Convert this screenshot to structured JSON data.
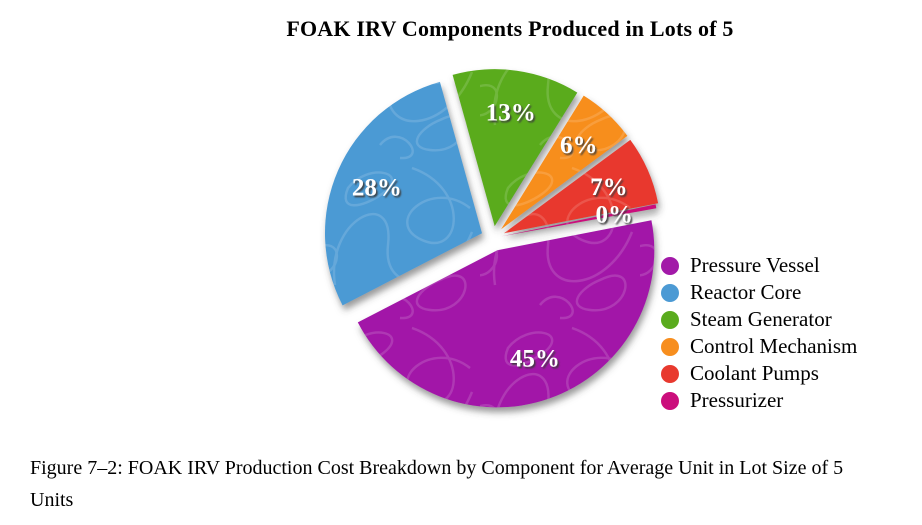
{
  "title": "FOAK IRV Components Produced in Lots of 5",
  "caption": "Figure 7–2: FOAK IRV Production Cost Breakdown by Component for Average Unit in Lot Size of 5 Units",
  "chart_data": {
    "type": "pie",
    "title": "FOAK IRV Components Produced in Lots of 5",
    "legend_position": "right",
    "direction": "clockwise",
    "start_angle_deg": 11,
    "label_color": "#ffffff",
    "slices": [
      {
        "label": "Pressure Vessel",
        "value": 45,
        "pct_label": "45%",
        "color": "#A219A8",
        "explode": 13
      },
      {
        "label": "Reactor Core",
        "value": 28,
        "pct_label": "28%",
        "color": "#4C9AD4",
        "explode": 12
      },
      {
        "label": "Steam Generator",
        "value": 13,
        "pct_label": "13%",
        "color": "#5AAB1E",
        "explode": 12
      },
      {
        "label": "Control Mechanism",
        "value": 6,
        "pct_label": "6%",
        "color": "#F78E1E",
        "explode": 12
      },
      {
        "label": "Coolant Pumps",
        "value": 7,
        "pct_label": "7%",
        "color": "#E8392E",
        "explode": 12
      },
      {
        "label": "Pressurizer",
        "value": 0,
        "pct_label": "0%",
        "color": "#CB0E7C",
        "explode": 9
      }
    ]
  }
}
